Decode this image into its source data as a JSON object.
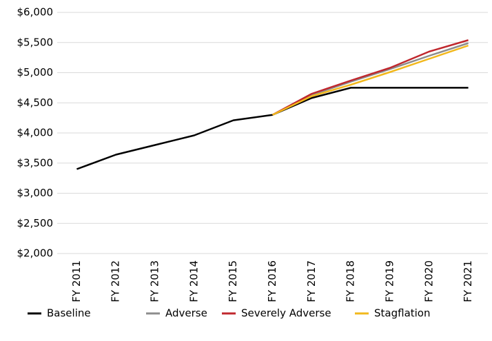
{
  "chart_data": {
    "type": "line",
    "categories": [
      "FY 2011",
      "FY 2012",
      "FY 2013",
      "FY 2014",
      "FY 2015",
      "FY 2016",
      "FY 2017",
      "FY 2018",
      "FY 2019",
      "FY 2020",
      "FY 2021"
    ],
    "series": [
      {
        "name": "Baseline",
        "color": "#000000",
        "values": [
          3400,
          3640,
          3800,
          3960,
          4210,
          4300,
          4580,
          4750,
          4750,
          4750,
          4750
        ]
      },
      {
        "name": "Adverse",
        "color": "#8c8c8c",
        "values": [
          null,
          null,
          null,
          null,
          null,
          4300,
          4630,
          4850,
          5060,
          5280,
          5490
        ]
      },
      {
        "name": "Severely Adverse",
        "color": "#c0272d",
        "values": [
          null,
          null,
          null,
          null,
          null,
          4300,
          4650,
          4870,
          5080,
          5350,
          5540
        ]
      },
      {
        "name": "Stagflation",
        "color": "#f2b81c",
        "values": [
          null,
          null,
          null,
          null,
          null,
          4300,
          4610,
          4800,
          5010,
          5230,
          5450
        ]
      }
    ],
    "ylim": [
      2000,
      6000
    ],
    "yticks": [
      {
        "value": 2000,
        "label": "$2,000"
      },
      {
        "value": 2500,
        "label": "$2,500"
      },
      {
        "value": 3000,
        "label": "$3,000"
      },
      {
        "value": 3500,
        "label": "$3,500"
      },
      {
        "value": 4000,
        "label": "$4,000"
      },
      {
        "value": 4500,
        "label": "$4,500"
      },
      {
        "value": 5000,
        "label": "$5,000"
      },
      {
        "value": 5500,
        "label": "$5,500"
      },
      {
        "value": 6000,
        "label": "$6,000"
      }
    ],
    "grid": true,
    "legend": "bottom"
  }
}
